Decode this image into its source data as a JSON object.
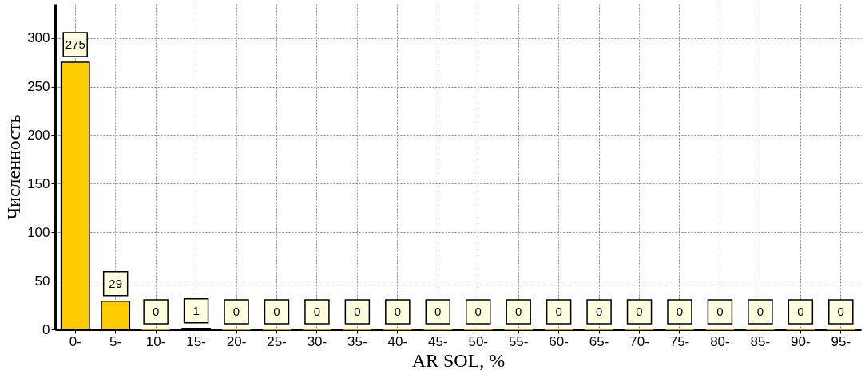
{
  "chart_data": {
    "type": "bar",
    "xlabel": "AR SOL, %",
    "ylabel": "Численность",
    "categories": [
      "0-",
      "5-",
      "10-",
      "15-",
      "20-",
      "25-",
      "30-",
      "35-",
      "40-",
      "45-",
      "50-",
      "55-",
      "60-",
      "65-",
      "70-",
      "75-",
      "80-",
      "85-",
      "90-",
      "95-"
    ],
    "values": [
      275,
      29,
      0,
      1,
      0,
      0,
      0,
      0,
      0,
      0,
      0,
      0,
      0,
      0,
      0,
      0,
      0,
      0,
      0,
      0
    ],
    "color": "#ffcc00",
    "ylim": [
      0,
      335
    ],
    "yticks": [
      0,
      50,
      100,
      150,
      200,
      250,
      300
    ],
    "grid": true,
    "data_labels": true
  }
}
